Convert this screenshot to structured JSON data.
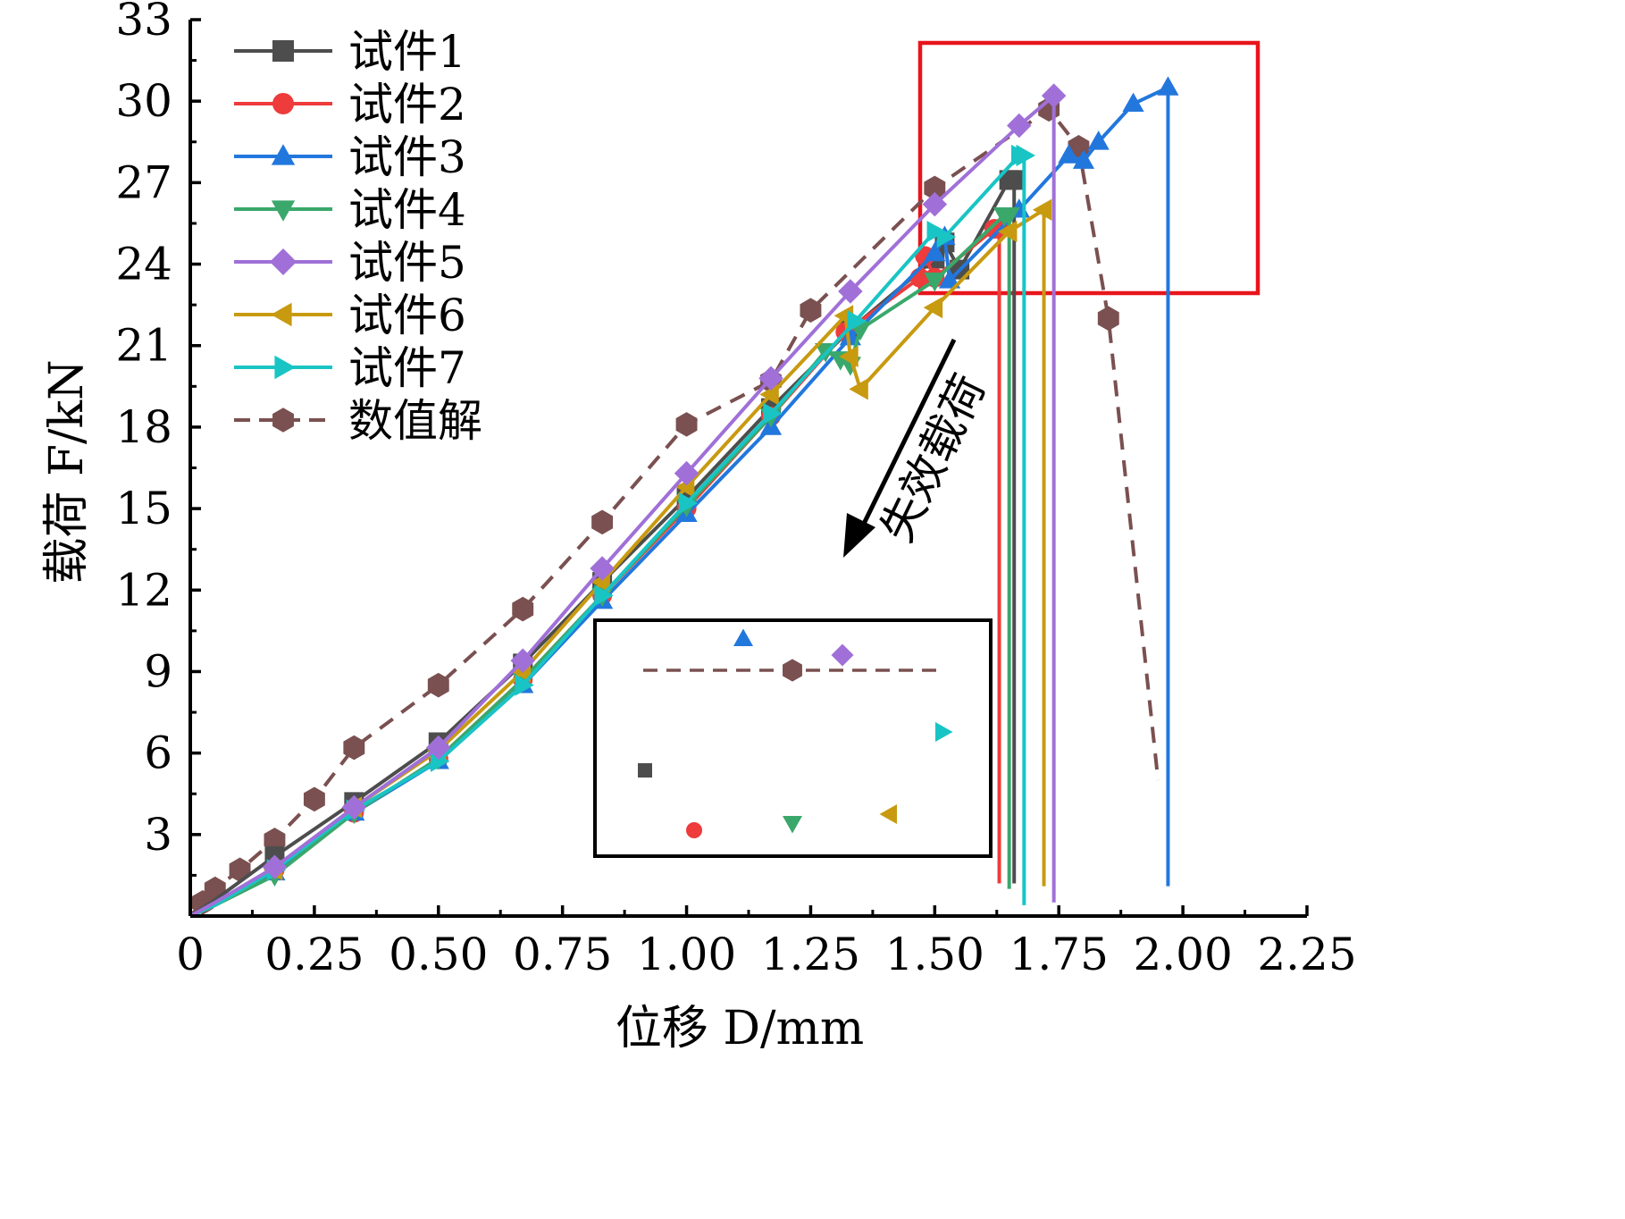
{
  "chart_data": {
    "type": "line",
    "xlabel": "位移 D/mm",
    "ylabel": "载荷 F/kN",
    "xlim": [
      0,
      2.25
    ],
    "ylim": [
      0,
      33
    ],
    "xticks": [
      0,
      0.25,
      0.5,
      0.75,
      1.0,
      1.25,
      1.5,
      1.75,
      2.0,
      2.25
    ],
    "xtick_labels": [
      "0",
      "0.25",
      "0.50",
      "0.75",
      "1.00",
      "1.25",
      "1.50",
      "1.75",
      "2.00",
      "2.25"
    ],
    "yticks": [
      3,
      6,
      9,
      12,
      15,
      18,
      21,
      24,
      27,
      30,
      33
    ],
    "ytick_labels": [
      "3",
      "6",
      "9",
      "12",
      "15",
      "18",
      "21",
      "24",
      "27",
      "30",
      "33"
    ],
    "grid": false,
    "legend_position": "top-left",
    "annotation": "失效载荷",
    "series": [
      {
        "name": "试件1",
        "color": "#4d4d4d",
        "marker": "square",
        "dash": false,
        "x": [
          0,
          0.05,
          0.17,
          0.33,
          0.5,
          0.67,
          0.83,
          1.0,
          1.17,
          1.33,
          1.5,
          1.52,
          1.55,
          1.65,
          1.66,
          1.66
        ],
        "y": [
          0,
          0.6,
          2.2,
          4.2,
          6.4,
          9.3,
          12.3,
          15.4,
          18.7,
          21.6,
          24.2,
          24.8,
          23.8,
          27.1,
          27.1,
          1.2
        ]
      },
      {
        "name": "试件2",
        "color": "#ee3b3b",
        "marker": "circle",
        "dash": false,
        "x": [
          0,
          0.05,
          0.17,
          0.33,
          0.5,
          0.67,
          0.83,
          1.0,
          1.17,
          1.32,
          1.47,
          1.48,
          1.5,
          1.62,
          1.63,
          1.63
        ],
        "y": [
          0,
          0.4,
          1.7,
          3.8,
          5.8,
          8.7,
          11.8,
          15.0,
          18.4,
          21.5,
          23.5,
          24.3,
          23.5,
          25.3,
          25.3,
          1.2
        ]
      },
      {
        "name": "试件3",
        "color": "#2277dd",
        "marker": "triangle-up",
        "dash": false,
        "x": [
          0,
          0.05,
          0.17,
          0.33,
          0.5,
          0.67,
          0.83,
          1.0,
          1.17,
          1.33,
          1.5,
          1.52,
          1.53,
          1.67,
          1.77,
          1.8,
          1.83,
          1.9,
          1.97,
          1.97
        ],
        "y": [
          0,
          0.4,
          1.6,
          3.8,
          5.7,
          8.5,
          11.6,
          14.8,
          18.0,
          21.3,
          24.4,
          25.0,
          23.4,
          26.0,
          28.0,
          27.8,
          28.5,
          29.9,
          30.5,
          1.1
        ]
      },
      {
        "name": "试件4",
        "color": "#3aa86b",
        "marker": "triangle-down",
        "dash": false,
        "x": [
          0,
          0.05,
          0.17,
          0.33,
          0.5,
          0.67,
          0.83,
          1.0,
          1.17,
          1.28,
          1.31,
          1.33,
          1.35,
          1.5,
          1.64,
          1.65,
          1.65
        ],
        "y": [
          0,
          0.4,
          1.5,
          3.8,
          5.8,
          8.7,
          11.8,
          15.1,
          18.4,
          20.8,
          20.5,
          20.3,
          21.6,
          23.4,
          25.8,
          25.8,
          1.0
        ]
      },
      {
        "name": "试件5",
        "color": "#a070d8",
        "marker": "diamond",
        "dash": false,
        "x": [
          0,
          0.05,
          0.17,
          0.33,
          0.5,
          0.67,
          0.83,
          1.0,
          1.17,
          1.33,
          1.5,
          1.67,
          1.74,
          1.74
        ],
        "y": [
          0,
          0.5,
          1.8,
          4.0,
          6.2,
          9.4,
          12.8,
          16.3,
          19.8,
          23.0,
          26.2,
          29.1,
          30.2,
          0.5
        ]
      },
      {
        "name": "试件6",
        "color": "#c89a10",
        "marker": "triangle-left",
        "dash": false,
        "x": [
          0,
          0.05,
          0.17,
          0.33,
          0.5,
          0.67,
          0.83,
          1.0,
          1.17,
          1.32,
          1.33,
          1.35,
          1.5,
          1.65,
          1.72,
          1.72
        ],
        "y": [
          0,
          0.4,
          1.7,
          4.0,
          6.1,
          9.0,
          12.3,
          15.8,
          19.2,
          22.1,
          20.6,
          19.4,
          22.4,
          25.2,
          26.0,
          1.1
        ]
      },
      {
        "name": "试件7",
        "color": "#19c4c4",
        "marker": "triangle-right",
        "dash": false,
        "x": [
          0,
          0.05,
          0.17,
          0.33,
          0.5,
          0.67,
          0.83,
          1.0,
          1.17,
          1.34,
          1.5,
          1.52,
          1.67,
          1.68,
          1.68
        ],
        "y": [
          0,
          0.4,
          1.7,
          3.9,
          5.7,
          8.5,
          11.8,
          15.2,
          18.5,
          21.9,
          25.2,
          25.0,
          28.0,
          28.0,
          0.4
        ]
      },
      {
        "name": "数值解",
        "color": "#7a5050",
        "marker": "hexagon",
        "dash": true,
        "x": [
          0,
          0.025,
          0.05,
          0.1,
          0.17,
          0.25,
          0.33,
          0.5,
          0.67,
          0.83,
          1.0,
          1.17,
          1.25,
          1.5,
          1.73,
          1.79,
          1.85,
          1.95
        ],
        "y": [
          0,
          0.5,
          1.0,
          1.7,
          2.8,
          4.3,
          6.2,
          8.5,
          11.3,
          14.5,
          18.1,
          19.7,
          22.3,
          26.8,
          29.7,
          28.3,
          22.0,
          5.0
        ]
      }
    ]
  }
}
